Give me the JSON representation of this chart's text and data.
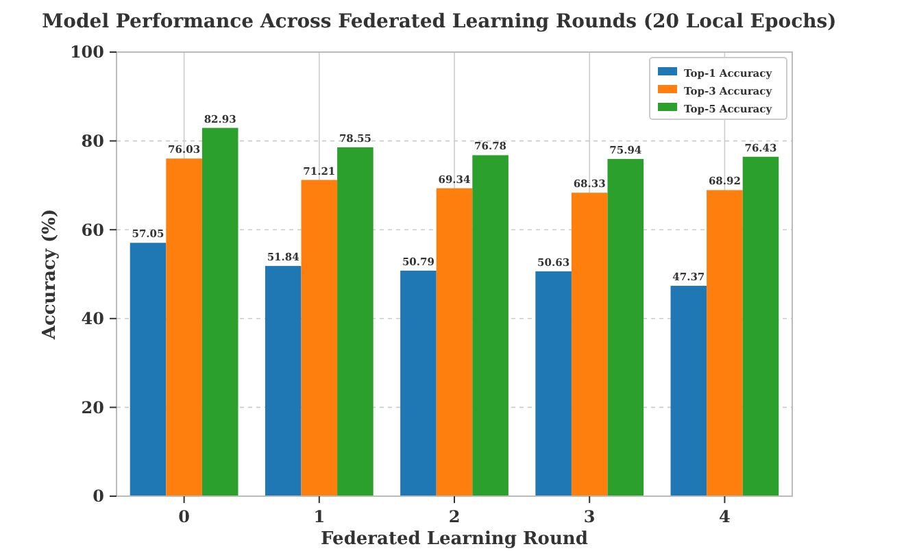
{
  "chart_data": {
    "type": "bar",
    "title": "Model Performance Across Federated Learning Rounds (20 Local Epochs)",
    "xlabel": "Federated Learning Round",
    "ylabel": "Accuracy (%)",
    "categories": [
      "0",
      "1",
      "2",
      "3",
      "4"
    ],
    "series": [
      {
        "name": "Top-1 Accuracy",
        "color": "#1f77b4",
        "values": [
          57.05,
          51.84,
          50.79,
          50.63,
          47.37
        ]
      },
      {
        "name": "Top-3 Accuracy",
        "color": "#ff7f0e",
        "values": [
          76.03,
          71.21,
          69.34,
          68.33,
          68.92
        ]
      },
      {
        "name": "Top-5 Accuracy",
        "color": "#2ca02c",
        "values": [
          82.93,
          78.55,
          76.78,
          75.94,
          76.43
        ]
      }
    ],
    "ylim": [
      0,
      100
    ],
    "yticks": [
      0,
      20,
      40,
      60,
      80,
      100
    ],
    "grid": true,
    "legend": "top right",
    "data_labels": true
  }
}
